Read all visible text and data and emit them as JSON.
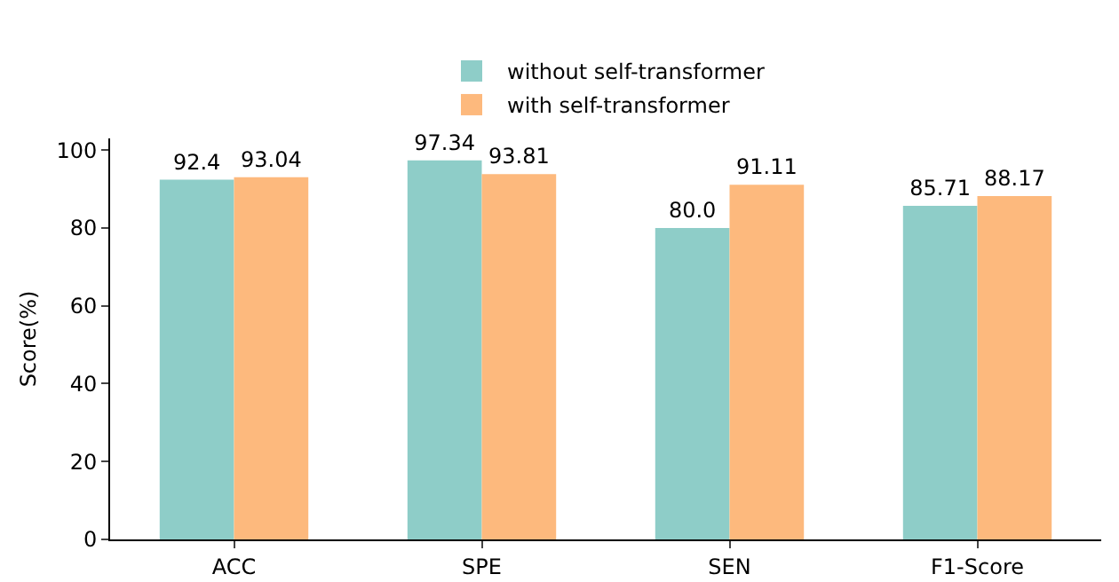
{
  "chart_data": {
    "type": "bar",
    "ylabel": "Score(%)",
    "categories": [
      "ACC",
      "SPE",
      "SEN",
      "F1-Score"
    ],
    "series": [
      {
        "name": "without self-transformer",
        "color": "#8ecdc8",
        "values": [
          92.4,
          97.34,
          80.0,
          85.71
        ],
        "value_labels": [
          "92.4",
          "97.34",
          "80.0",
          "85.71"
        ]
      },
      {
        "name": "with self-transformer",
        "color": "#fdb97d",
        "values": [
          93.04,
          93.81,
          91.11,
          88.17
        ],
        "value_labels": [
          "93.04",
          "93.81",
          "91.11",
          "88.17"
        ]
      }
    ],
    "ylim": [
      0,
      103
    ],
    "yticks": [
      0,
      20,
      40,
      60,
      80,
      100
    ],
    "grid": false,
    "legend": "top"
  }
}
